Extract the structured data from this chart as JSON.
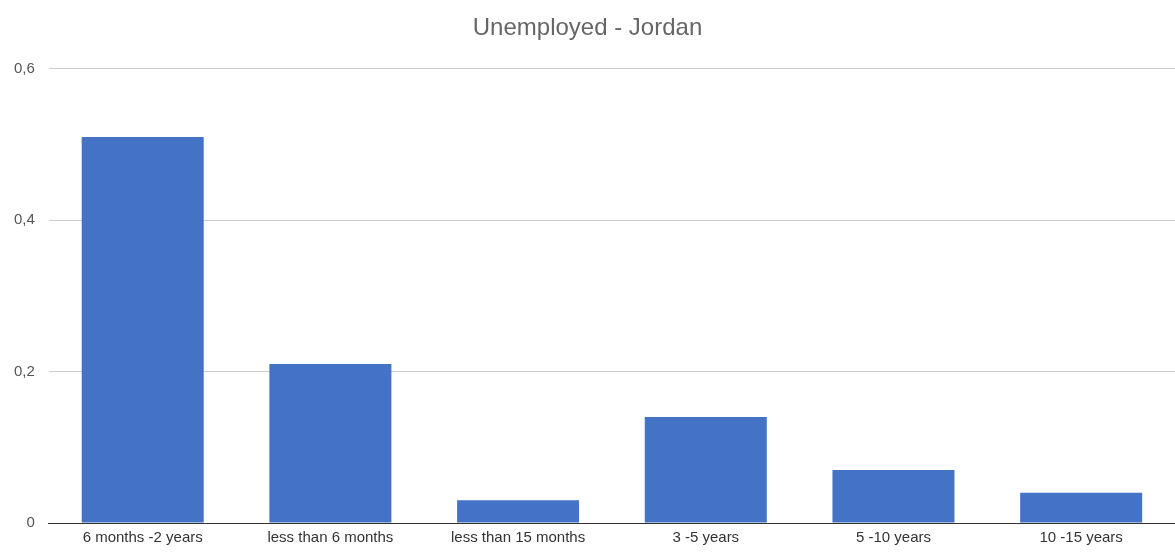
{
  "chart_data": {
    "type": "bar",
    "title": "Unemployed - Jordan",
    "categories": [
      "6 months -2 years",
      "less than 6 months",
      "less than 15 months",
      "3 -5 years",
      "5 -10 years",
      "10 -15 years"
    ],
    "values": [
      0.51,
      0.21,
      0.03,
      0.14,
      0.07,
      0.04
    ],
    "color": "#4472c4",
    "ylim": [
      0,
      0.6
    ],
    "yticks": [
      {
        "value": 0,
        "label": "0"
      },
      {
        "value": 0.2,
        "label": "0,2"
      },
      {
        "value": 0.4,
        "label": "0,4"
      },
      {
        "value": 0.6,
        "label": "0,6"
      }
    ],
    "grid": "y"
  }
}
